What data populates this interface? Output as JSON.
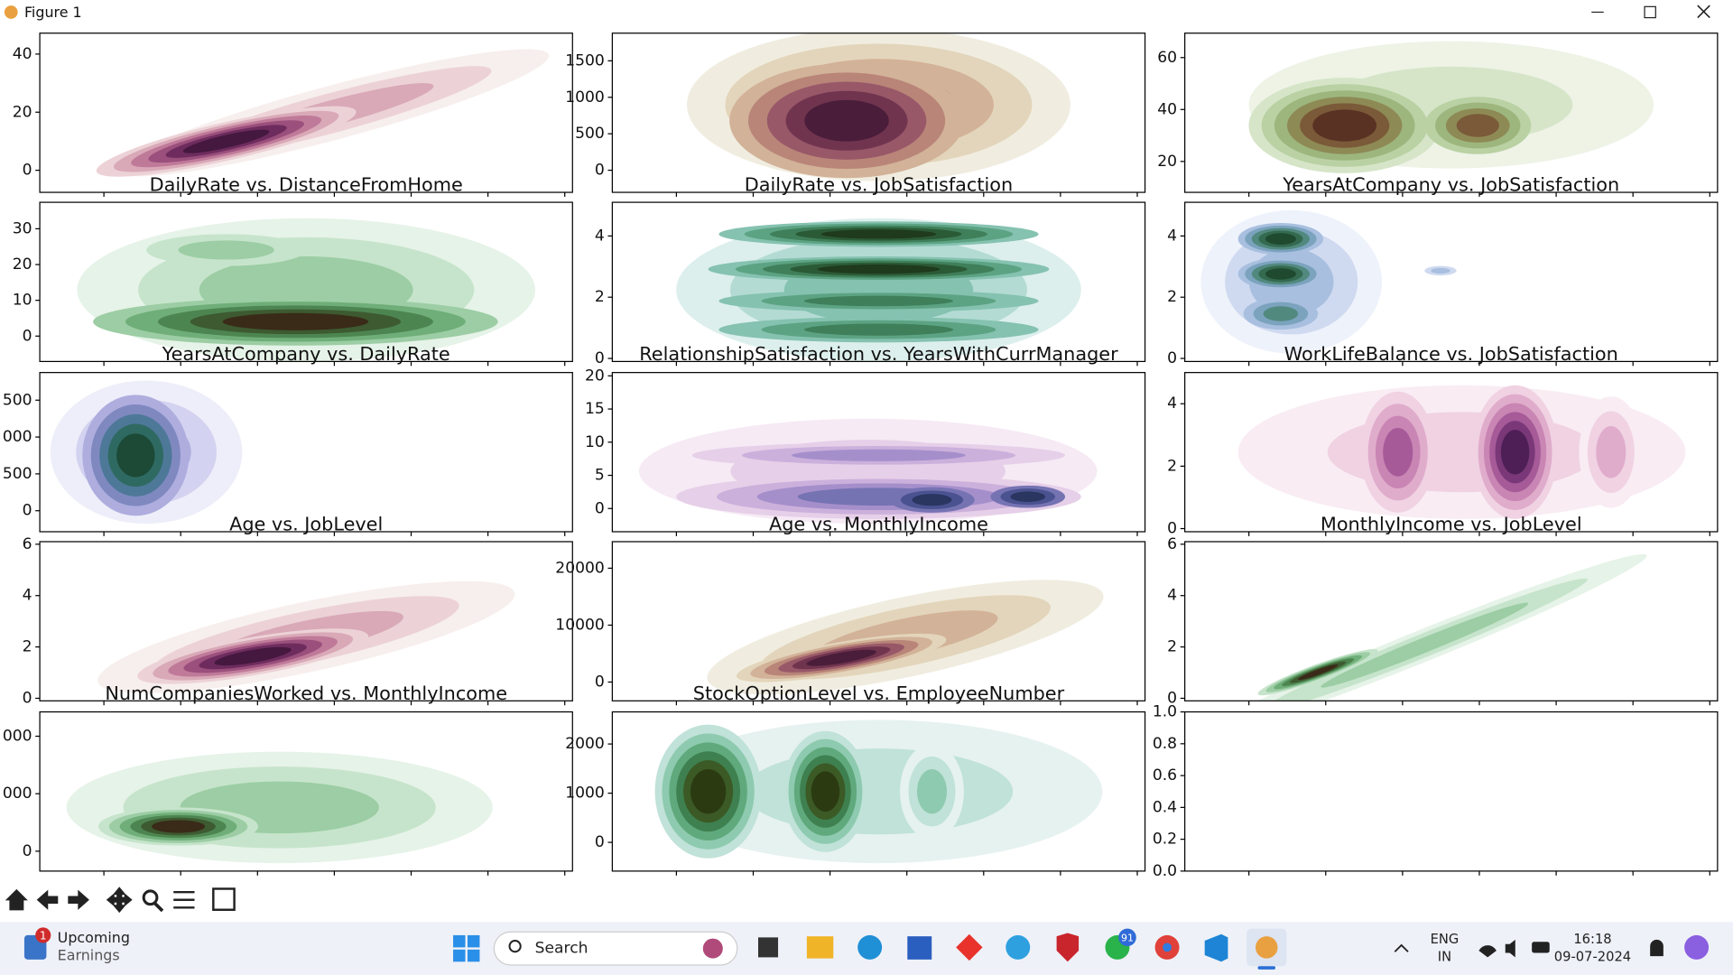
{
  "window": {
    "title": "Figure 1"
  },
  "figure": {
    "plots": [
      {
        "title": "DailyRate vs. DistanceFromHome",
        "ylim": [
          -7.6,
          47.2
        ],
        "yticks": [
          0,
          20,
          40
        ]
      },
      {
        "title": "DailyRate vs. JobSatisfaction",
        "ylim": [
          -303,
          1879
        ],
        "yticks": [
          0,
          500,
          1000,
          1500
        ]
      },
      {
        "title": "YearsAtCompany vs. JobSatisfaction",
        "ylim": [
          8.1,
          69.4
        ],
        "yticks": [
          20,
          40,
          60
        ]
      },
      {
        "title": "YearsAtCompany vs. DailyRate",
        "ylim": [
          -7.1,
          37.4
        ],
        "yticks": [
          0,
          10,
          20,
          30
        ]
      },
      {
        "title": "RelationshipSatisfaction vs. YearsWithCurrManager",
        "ylim": [
          -0.1,
          5.1
        ],
        "yticks": [
          0,
          2,
          4
        ]
      },
      {
        "title": "WorkLifeBalance vs. JobSatisfaction",
        "ylim": [
          -0.1,
          5.1
        ],
        "yticks": [
          0,
          2,
          4
        ]
      },
      {
        "title": "Age vs. JobLevel",
        "ylim": [
          -285,
          1875
        ],
        "yticks": [
          0,
          {
            "value": 500,
            "label": "500"
          },
          {
            "value": 1000,
            "label": "000"
          },
          {
            "value": 1500,
            "label": "500"
          }
        ]
      },
      {
        "title": "Age vs. MonthlyIncome",
        "ylim": [
          -3.5,
          20.5
        ],
        "yticks": [
          0,
          5,
          10,
          15,
          20
        ]
      },
      {
        "title": "MonthlyIncome vs. JobLevel",
        "ylim": [
          -0.1,
          5.0
        ],
        "yticks": [
          0,
          2,
          4
        ]
      },
      {
        "title": "NumCompaniesWorked vs. MonthlyIncome",
        "ylim": [
          -0.1,
          6.1
        ],
        "yticks": [
          0,
          2,
          4,
          6
        ]
      },
      {
        "title": "StockOptionLevel vs. EmployeeNumber",
        "ylim": [
          -3300,
          24660
        ],
        "yticks": [
          0,
          10000,
          20000
        ]
      },
      {
        "title": "",
        "ylim": [
          -0.1,
          6.1
        ],
        "yticks": [
          0,
          2,
          4,
          6
        ]
      },
      {
        "title": "",
        "ylim": [
          -346,
          2423
        ],
        "yticks": [
          0,
          {
            "value": 1000,
            "label": "000"
          },
          {
            "value": 2000,
            "label": "000"
          }
        ]
      },
      {
        "title": "",
        "ylim": [
          -584,
          2652
        ],
        "yticks": [
          0,
          1000,
          2000
        ]
      },
      {
        "title": "",
        "ylim": [
          0,
          1
        ],
        "yticks": [
          {
            "value": 0,
            "label": "0.0"
          },
          0.2,
          0.4,
          0.6,
          0.8,
          {
            "value": 1,
            "label": "1.0"
          }
        ]
      }
    ]
  },
  "taskbar": {
    "news_badge": "1",
    "news_line1": "Upcoming",
    "news_line2": "Earnings",
    "search": "Search",
    "whatsapp_badge": "91",
    "language": "ENG",
    "region": "IN",
    "time": "16:18",
    "date": "09-07-2024"
  }
}
